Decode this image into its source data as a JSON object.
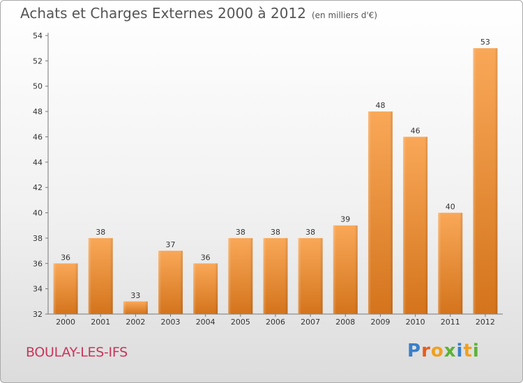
{
  "header": {
    "title": "Achats et Charges Externes 2000 à 2012",
    "subtitle": "(en milliers d'€)"
  },
  "footer": {
    "commune": "BOULAY-LES-IFS",
    "brand_letters": [
      "P",
      "r",
      "o",
      "x",
      "i",
      "t",
      "i"
    ]
  },
  "colors": {
    "bar_top": "#f9a858",
    "bar_bottom": "#d4741c",
    "commune_text": "#c8365b",
    "brand_letter_colors": [
      "#3a7fc9",
      "#e85c1a",
      "#f0a020",
      "#5bb335",
      "#3a7fc9",
      "#f0a020",
      "#5bb335"
    ]
  },
  "chart_data": {
    "type": "bar",
    "categories": [
      "2000",
      "2001",
      "2002",
      "2003",
      "2004",
      "2005",
      "2006",
      "2007",
      "2008",
      "2009",
      "2010",
      "2011",
      "2012"
    ],
    "values": [
      36,
      38,
      33,
      37,
      36,
      38,
      38,
      38,
      39,
      48,
      46,
      40,
      53
    ],
    "title": "Achats et Charges Externes 2000 à 2012",
    "ylim": [
      32,
      54
    ],
    "yticks": [
      32,
      34,
      36,
      38,
      40,
      42,
      44,
      46,
      48,
      50,
      52,
      54
    ],
    "grid": false,
    "data_labels": true
  }
}
